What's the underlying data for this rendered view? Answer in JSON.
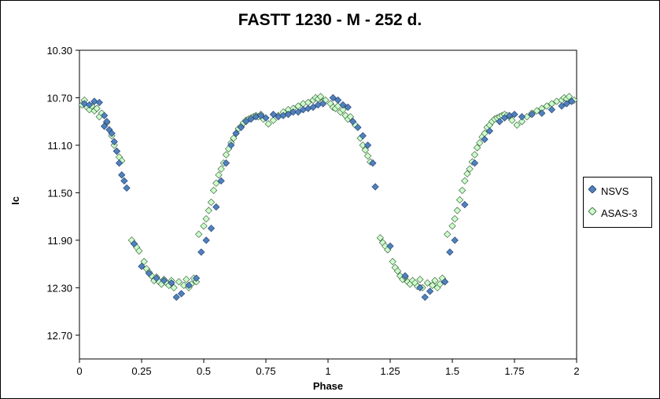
{
  "chart_data": {
    "type": "scatter",
    "title": "FASTT 1230 - M - 252 d.",
    "xlabel": "Phase",
    "ylabel": "Ic",
    "xlim": [
      0,
      2
    ],
    "ylim": [
      10.3,
      12.9
    ],
    "y_inverted": true,
    "x_ticks": [
      "0",
      "0.25",
      "0.5",
      "0.75",
      "1",
      "1.25",
      "1.5",
      "1.75",
      "2"
    ],
    "y_ticks": [
      "10.30",
      "10.70",
      "11.10",
      "11.50",
      "11.90",
      "12.30",
      "12.70"
    ],
    "legend_position": "right",
    "grid": false,
    "series": [
      {
        "name": "NSVS",
        "color": "#4f81bd",
        "x": [
          0.02,
          0.04,
          0.06,
          0.08,
          0.1,
          0.1,
          0.11,
          0.12,
          0.13,
          0.14,
          0.15,
          0.16,
          0.17,
          0.18,
          0.19,
          0.22,
          0.25,
          0.28,
          0.31,
          0.34,
          0.37,
          0.39,
          0.41,
          0.44,
          0.47,
          0.49,
          0.51,
          0.53,
          0.55,
          0.57,
          0.59,
          0.61,
          0.63,
          0.65,
          0.67,
          0.69,
          0.71,
          0.73,
          0.75,
          0.78,
          0.8,
          0.82,
          0.84,
          0.86,
          0.88,
          0.9,
          0.92,
          0.94,
          0.96,
          0.98,
          1.02,
          1.04,
          1.06,
          1.08,
          1.1,
          1.12,
          1.14,
          1.16,
          1.18,
          1.19,
          1.25,
          1.31,
          1.37,
          1.39,
          1.41,
          1.47,
          1.49,
          1.51,
          1.55,
          1.59,
          1.63,
          1.65,
          1.69,
          1.71,
          1.73,
          1.75,
          1.78,
          1.82,
          1.86,
          1.9,
          1.94,
          1.96,
          1.98
        ],
        "y": [
          10.75,
          10.76,
          10.73,
          10.74,
          10.85,
          10.94,
          10.9,
          10.97,
          11.0,
          11.07,
          11.15,
          11.25,
          11.35,
          11.4,
          11.46,
          11.93,
          12.12,
          12.18,
          12.22,
          12.24,
          12.26,
          12.38,
          12.35,
          12.28,
          12.22,
          12.0,
          11.9,
          11.8,
          11.62,
          11.4,
          11.25,
          11.1,
          11.0,
          10.95,
          10.9,
          10.88,
          10.86,
          10.85,
          10.87,
          10.84,
          10.86,
          10.85,
          10.84,
          10.82,
          10.82,
          10.8,
          10.79,
          10.78,
          10.76,
          10.75,
          10.7,
          10.72,
          10.76,
          10.78,
          10.9,
          10.95,
          11.02,
          11.1,
          11.25,
          11.45,
          11.95,
          12.2,
          12.3,
          12.38,
          12.33,
          12.25,
          12.0,
          11.9,
          11.6,
          11.25,
          11.05,
          10.98,
          10.9,
          10.87,
          10.85,
          10.84,
          10.86,
          10.84,
          10.83,
          10.8,
          10.77,
          10.75,
          10.73
        ]
      },
      {
        "name": "ASAS-3",
        "color": "#ccffcc",
        "x": [
          0.01,
          0.02,
          0.03,
          0.04,
          0.05,
          0.06,
          0.07,
          0.08,
          0.09,
          0.11,
          0.13,
          0.14,
          0.15,
          0.16,
          0.17,
          0.21,
          0.22,
          0.23,
          0.24,
          0.26,
          0.27,
          0.28,
          0.29,
          0.3,
          0.31,
          0.32,
          0.33,
          0.34,
          0.35,
          0.36,
          0.37,
          0.38,
          0.4,
          0.42,
          0.43,
          0.44,
          0.45,
          0.46,
          0.47,
          0.48,
          0.5,
          0.51,
          0.52,
          0.53,
          0.54,
          0.55,
          0.56,
          0.57,
          0.58,
          0.59,
          0.6,
          0.61,
          0.62,
          0.63,
          0.64,
          0.65,
          0.66,
          0.67,
          0.68,
          0.69,
          0.7,
          0.71,
          0.72,
          0.73,
          0.74,
          0.76,
          0.78,
          0.8,
          0.82,
          0.84,
          0.86,
          0.88,
          0.9,
          0.92,
          0.94,
          0.95,
          0.96,
          0.97,
          0.98,
          0.99,
          1.01,
          1.02,
          1.03,
          1.04,
          1.05,
          1.06,
          1.07,
          1.08,
          1.09,
          1.11,
          1.13,
          1.14,
          1.15,
          1.16,
          1.17,
          1.21,
          1.22,
          1.23,
          1.24,
          1.26,
          1.27,
          1.28,
          1.29,
          1.3,
          1.31,
          1.32,
          1.33,
          1.34,
          1.35,
          1.36,
          1.37,
          1.38,
          1.4,
          1.42,
          1.43,
          1.44,
          1.45,
          1.46,
          1.47,
          1.48,
          1.5,
          1.51,
          1.52,
          1.53,
          1.54,
          1.55,
          1.56,
          1.57,
          1.58,
          1.59,
          1.6,
          1.61,
          1.62,
          1.63,
          1.64,
          1.65,
          1.66,
          1.67,
          1.68,
          1.69,
          1.7,
          1.71,
          1.72,
          1.73,
          1.74,
          1.76,
          1.78,
          1.8,
          1.82,
          1.84,
          1.86,
          1.88,
          1.9,
          1.92,
          1.94,
          1.95,
          1.96,
          1.97,
          1.98,
          1.99
        ],
        "y": [
          10.76,
          10.72,
          10.78,
          10.8,
          10.77,
          10.81,
          10.79,
          10.86,
          10.83,
          10.91,
          11.02,
          11.1,
          11.15,
          11.2,
          11.23,
          11.9,
          11.93,
          11.96,
          11.99,
          12.08,
          12.14,
          12.17,
          12.2,
          12.24,
          12.21,
          12.25,
          12.27,
          12.23,
          12.26,
          12.28,
          12.24,
          12.3,
          12.25,
          12.28,
          12.23,
          12.3,
          12.27,
          12.22,
          12.25,
          11.85,
          11.78,
          11.72,
          11.65,
          11.58,
          11.48,
          11.42,
          11.35,
          11.3,
          11.25,
          11.18,
          11.13,
          11.08,
          11.04,
          11.0,
          10.96,
          10.94,
          10.91,
          10.89,
          10.88,
          10.87,
          10.86,
          10.85,
          10.86,
          10.84,
          10.88,
          10.92,
          10.89,
          10.85,
          10.82,
          10.8,
          10.79,
          10.77,
          10.75,
          10.74,
          10.72,
          10.7,
          10.71,
          10.69,
          10.73,
          10.72,
          10.75,
          10.78,
          10.79,
          10.77,
          10.82,
          10.8,
          10.85,
          10.88,
          10.86,
          10.93,
          11.04,
          11.1,
          11.14,
          11.19,
          11.24,
          11.88,
          11.92,
          11.95,
          11.98,
          12.08,
          12.13,
          12.16,
          12.2,
          12.23,
          12.21,
          12.25,
          12.27,
          12.24,
          12.26,
          12.29,
          12.23,
          12.3,
          12.26,
          12.28,
          12.24,
          12.3,
          12.27,
          12.22,
          12.25,
          11.85,
          11.78,
          11.72,
          11.65,
          11.56,
          11.48,
          11.4,
          11.34,
          11.3,
          11.24,
          11.18,
          11.12,
          11.08,
          11.03,
          11.0,
          10.95,
          10.93,
          10.9,
          10.88,
          10.87,
          10.86,
          10.85,
          10.84,
          10.85,
          10.86,
          10.89,
          10.93,
          10.9,
          10.86,
          10.83,
          10.81,
          10.79,
          10.77,
          10.75,
          10.73,
          10.72,
          10.7,
          10.71,
          10.69,
          10.73,
          10.72
        ]
      }
    ]
  }
}
